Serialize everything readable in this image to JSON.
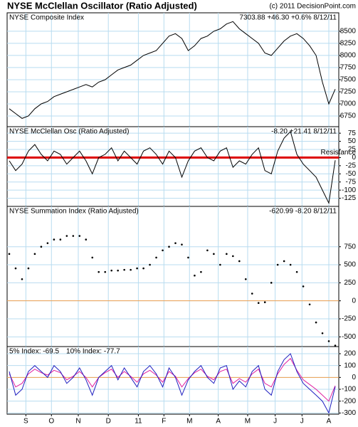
{
  "chart_data": [
    {
      "type": "line",
      "title": "NYSE McClellan Oscillator (Ratio Adjusted)",
      "credit": "(c) 2011 DecisionPoint.com",
      "label": "NYSE Composite Index",
      "info": "7303.88 +46.30 +0.6% 8/12/11",
      "color": "#000000",
      "values": [
        6900,
        6800,
        6700,
        6750,
        6900,
        7000,
        7050,
        7150,
        7200,
        7250,
        7300,
        7350,
        7400,
        7350,
        7450,
        7500,
        7600,
        7700,
        7750,
        7800,
        7900,
        8000,
        8050,
        8100,
        8250,
        8400,
        8450,
        8350,
        8100,
        8200,
        8350,
        8400,
        8500,
        8550,
        8650,
        8700,
        8550,
        8450,
        8350,
        8250,
        8050,
        8000,
        8150,
        8300,
        8400,
        8450,
        8350,
        8200,
        8000,
        7450,
        7000,
        7303.88
      ],
      "ylim": [
        6530,
        8880
      ],
      "yticks": [
        6750,
        7000,
        7250,
        7500,
        7750,
        8000,
        8250,
        8500
      ],
      "grid": true
    },
    {
      "type": "line",
      "label": "NYSE McClellan Osc (Ratio Adjusted)",
      "info": "-8.20 +21.41 8/12/11",
      "color": "#000000",
      "values": [
        -10,
        -40,
        -20,
        20,
        40,
        10,
        -10,
        20,
        10,
        -20,
        0,
        20,
        -10,
        -50,
        0,
        10,
        30,
        -10,
        20,
        0,
        -20,
        20,
        30,
        10,
        -20,
        20,
        0,
        -60,
        -10,
        20,
        30,
        0,
        -10,
        20,
        30,
        -30,
        -10,
        -20,
        10,
        30,
        -40,
        -50,
        20,
        60,
        80,
        10,
        -20,
        -40,
        -60,
        -100,
        -140,
        -8.2
      ],
      "ylim": [
        -150,
        95
      ],
      "yticks": [
        -125,
        -100,
        -75,
        -50,
        -25,
        0,
        25,
        50,
        75
      ],
      "grid": true,
      "hline": 0,
      "hline_color": "#dd0000",
      "annotation": "Resistance"
    },
    {
      "type": "dot",
      "label": "NYSE Summation Index (Ratio Adjusted)",
      "info": "-620.99 -8.20 8/12/11",
      "color": "#000000",
      "values": [
        650,
        450,
        300,
        450,
        650,
        750,
        800,
        850,
        850,
        900,
        900,
        900,
        850,
        600,
        400,
        400,
        420,
        420,
        430,
        430,
        450,
        450,
        500,
        600,
        700,
        750,
        800,
        780,
        600,
        350,
        400,
        700,
        650,
        500,
        650,
        620,
        550,
        300,
        100,
        -30,
        -20,
        250,
        500,
        550,
        500,
        400,
        200,
        -50,
        -300,
        -450,
        -560,
        -620.99
      ],
      "ylim": [
        -635,
        1310
      ],
      "yticks": [
        -500,
        -250,
        0,
        250,
        500,
        750
      ],
      "grid": true,
      "hline": 0,
      "hline_color": "#f0a050"
    },
    {
      "type": "line",
      "xlim": [
        0,
        51
      ],
      "xticks": [
        {
          "value": 2.6,
          "label": "S"
        },
        {
          "value": 6.6,
          "label": "O"
        },
        {
          "value": 10.8,
          "label": "N"
        },
        {
          "value": 15.5,
          "label": "D"
        },
        {
          "value": 20.2,
          "label": "11"
        },
        {
          "value": 24.2,
          "label": "F"
        },
        {
          "value": 28.2,
          "label": "M"
        },
        {
          "value": 32.7,
          "label": "A"
        },
        {
          "value": 37.3,
          "label": "M"
        },
        {
          "value": 41.6,
          "label": "J"
        },
        {
          "value": 45.8,
          "label": "J"
        },
        {
          "value": 50.0,
          "label": "A"
        }
      ],
      "series": [
        {
          "name": "5% Index: -69.5",
          "color": "#e020a0",
          "values": [
            30,
            -80,
            -50,
            30,
            70,
            40,
            20,
            60,
            40,
            -20,
            10,
            50,
            0,
            -80,
            0,
            40,
            70,
            0,
            50,
            10,
            -40,
            30,
            60,
            20,
            -40,
            50,
            10,
            -80,
            -10,
            40,
            70,
            10,
            -20,
            50,
            70,
            -50,
            -10,
            -40,
            30,
            70,
            -50,
            -80,
            30,
            110,
            160,
            60,
            -20,
            -60,
            -100,
            -150,
            -200,
            -69.5
          ]
        },
        {
          "name": "10% Index: -77.7",
          "color": "#2020c0",
          "values": [
            50,
            -150,
            -100,
            50,
            100,
            50,
            0,
            100,
            50,
            -50,
            0,
            80,
            -20,
            -150,
            0,
            50,
            100,
            -20,
            80,
            0,
            -80,
            50,
            100,
            30,
            -80,
            80,
            0,
            -150,
            -20,
            50,
            100,
            0,
            -50,
            80,
            100,
            -100,
            -30,
            -80,
            50,
            100,
            -100,
            -150,
            50,
            150,
            200,
            50,
            -50,
            -100,
            -150,
            -200,
            -300,
            -77.7
          ]
        }
      ],
      "ylim": [
        -310,
        260
      ],
      "yticks": [
        -300,
        -200,
        -100,
        0,
        100,
        200
      ],
      "grid": true,
      "hline": 0,
      "hline_color": "#f0a050"
    }
  ]
}
